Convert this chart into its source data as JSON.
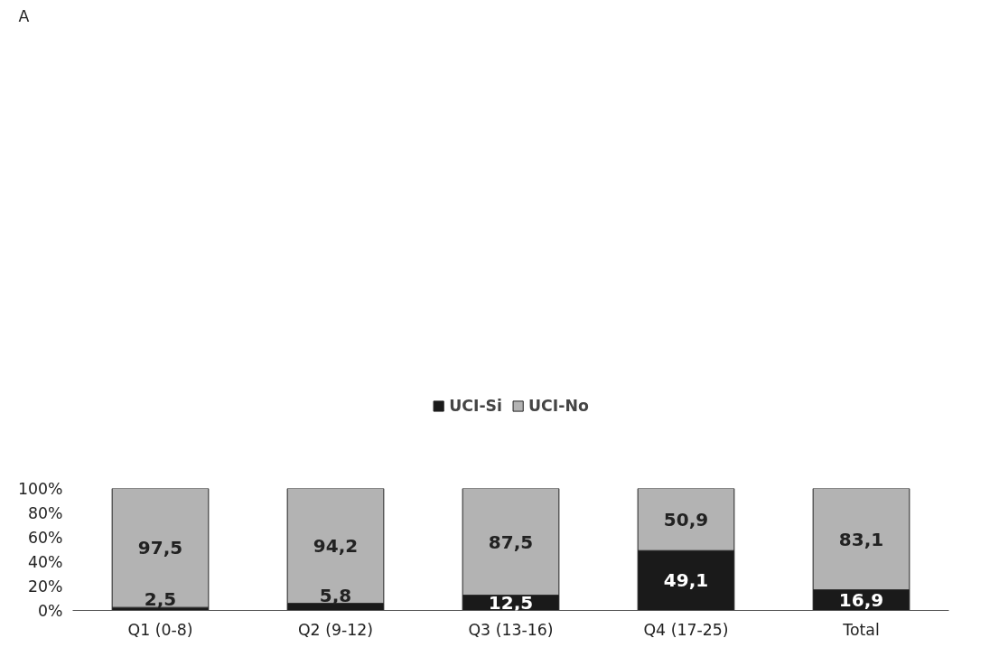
{
  "chart_data": {
    "type": "bar",
    "stacked": true,
    "categories": [
      "Q1 (0-8)",
      "Q2 (9-12)",
      "Q3 (13-16)",
      "Q4 (17-25)",
      "Total"
    ],
    "series": [
      {
        "name": "UCI-Si",
        "color": "#1a1a1a",
        "values": [
          2.5,
          5.8,
          12.5,
          49.1,
          16.9
        ],
        "value_labels": [
          "2,5",
          "5,8",
          "12,5",
          "49,1",
          "16,9"
        ]
      },
      {
        "name": "UCI-No",
        "color": "#b3b3b3",
        "values": [
          97.5,
          94.2,
          87.5,
          50.9,
          83.1
        ],
        "value_labels": [
          "97,5",
          "94,2",
          "87,5",
          "50,9",
          "83,1"
        ]
      }
    ],
    "ylim": [
      0,
      100
    ],
    "yticks": [
      {
        "value": 0,
        "label": "0%"
      },
      {
        "value": 20,
        "label": "20%"
      },
      {
        "value": 40,
        "label": "40%"
      },
      {
        "value": 60,
        "label": "60%"
      },
      {
        "value": 80,
        "label": "80%"
      },
      {
        "value": 100,
        "label": "100%"
      }
    ],
    "legend": "top",
    "grid": false,
    "annotations": [
      "A"
    ]
  }
}
